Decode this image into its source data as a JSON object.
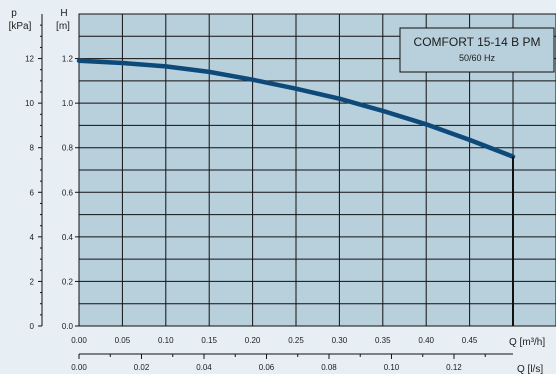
{
  "colors": {
    "background": "#e7eff5",
    "plot_fill": "#b8cfdc",
    "grid": "#111111",
    "curve": "#0d4a7a",
    "legend_fill": "#b8cfdc"
  },
  "chart_data": {
    "type": "line",
    "grid": true,
    "legend_placement": "top-right",
    "legend": {
      "title": "COMFORT 15-14 B PM",
      "subtitle": "50/60 Hz"
    },
    "axis_labels": {
      "p_name": "p",
      "p_unit": "[kPa]",
      "h_name": "H",
      "h_unit": "[m]",
      "q_m3h_label": "Q [m³/h]",
      "q_ls_label": "Q [l/s]"
    },
    "x": {
      "min": 0,
      "max": 0.5,
      "ticks": [
        "0.00",
        "0.05",
        "0.10",
        "0.15",
        "0.20",
        "0.25",
        "0.30",
        "0.35",
        "0.40",
        "0.45"
      ]
    },
    "y_head": {
      "min": 0,
      "max": 1.4,
      "ticks": [
        "0.0",
        "0.2",
        "0.4",
        "0.6",
        "0.8",
        "1.0",
        "1.2"
      ]
    },
    "y_pressure": {
      "ticks": [
        "0",
        "2",
        "4",
        "6",
        "8",
        "10",
        "12"
      ]
    },
    "x_ls": {
      "ticks": [
        "0.00",
        "0.02",
        "0.04",
        "0.06",
        "0.08",
        "0.10",
        "0.12"
      ]
    },
    "series": [
      {
        "x": [
          0.0,
          0.05,
          0.1,
          0.15,
          0.2,
          0.25,
          0.3,
          0.35,
          0.4,
          0.45,
          0.5
        ],
        "y": [
          1.19,
          1.18,
          1.165,
          1.14,
          1.105,
          1.065,
          1.02,
          0.965,
          0.905,
          0.835,
          0.76
        ]
      }
    ]
  }
}
